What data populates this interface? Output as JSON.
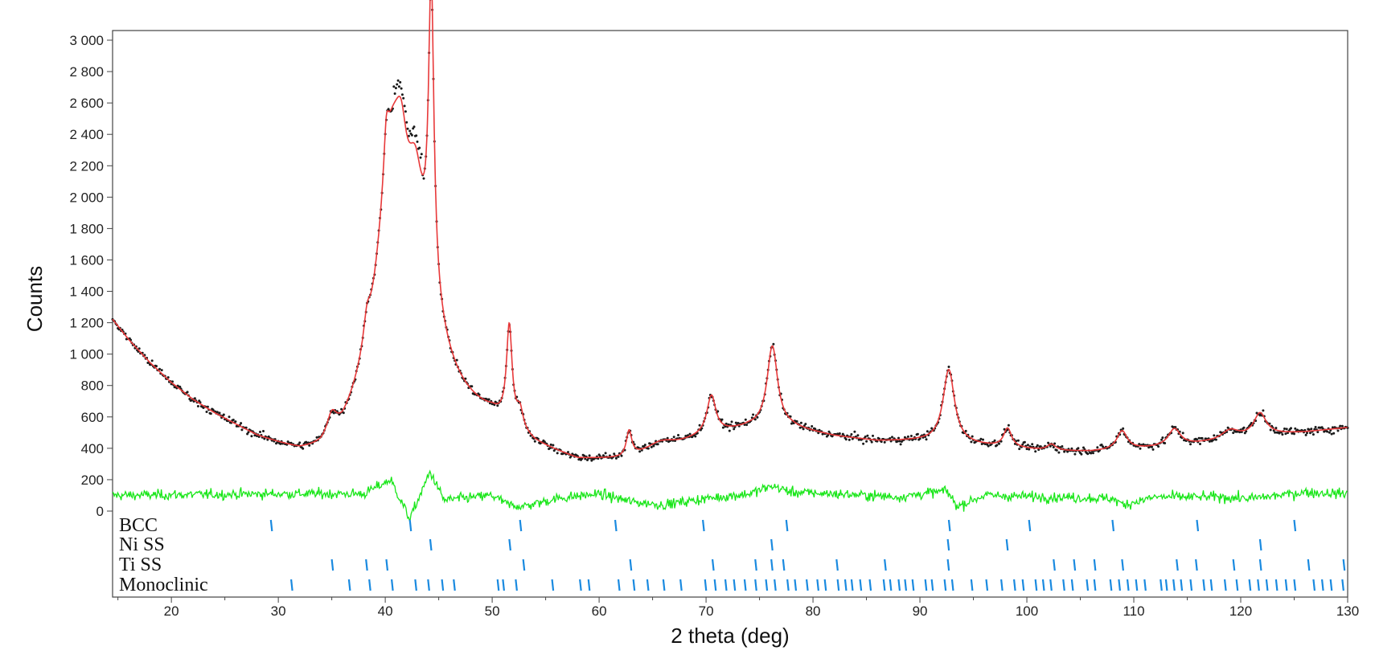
{
  "chart_data": {
    "type": "scatter",
    "title": "",
    "xlabel": "2 theta (deg)",
    "ylabel": "Counts",
    "xlim": [
      14.5,
      130
    ],
    "ylim": [
      -600,
      3080
    ],
    "x_ticks": [
      20,
      30,
      40,
      50,
      60,
      70,
      80,
      90,
      100,
      110,
      120,
      130
    ],
    "x_tick_labels": [
      "20",
      "30",
      "40",
      "50",
      "60",
      "70",
      "80",
      "90",
      "100",
      "110",
      "120",
      "130"
    ],
    "y_ticks": [
      0,
      200,
      400,
      600,
      800,
      1000,
      1200,
      1400,
      1600,
      1800,
      2000,
      2200,
      2400,
      2600,
      2800,
      3000
    ],
    "y_tick_labels": [
      "0",
      "200",
      "400",
      "600",
      "800",
      "1 000",
      "1 200",
      "1 400",
      "1 600",
      "1 800",
      "2 000",
      "2 200",
      "2 400",
      "2 600",
      "2 800",
      "3 000"
    ],
    "grid": false,
    "colors": {
      "observed": "#1a1a1a",
      "calculated": "#e8393a",
      "difference": "#19e619",
      "reflections": "#1a8ae0"
    },
    "series_legend": {
      "observed": "observed points (black dots)",
      "calculated": "calculated profile (red line)",
      "difference": "difference curve (green)"
    },
    "background": {
      "points": [
        [
          14.5,
          1210
        ],
        [
          16,
          1080
        ],
        [
          18,
          930
        ],
        [
          20,
          800
        ],
        [
          22,
          690
        ],
        [
          24,
          600
        ],
        [
          26,
          520
        ],
        [
          28,
          440
        ],
        [
          30,
          380
        ],
        [
          32,
          320
        ],
        [
          34,
          300
        ],
        [
          36,
          350
        ],
        [
          38,
          500
        ],
        [
          50,
          520
        ],
        [
          54,
          380
        ],
        [
          58,
          300
        ],
        [
          62,
          310
        ],
        [
          66,
          370
        ],
        [
          70,
          470
        ],
        [
          74,
          520
        ],
        [
          78,
          520
        ],
        [
          82,
          470
        ],
        [
          86,
          440
        ],
        [
          90,
          440
        ],
        [
          94,
          420
        ],
        [
          98,
          400
        ],
        [
          102,
          380
        ],
        [
          106,
          375
        ],
        [
          110,
          390
        ],
        [
          114,
          410
        ],
        [
          118,
          440
        ],
        [
          122,
          480
        ],
        [
          126,
          500
        ],
        [
          130,
          530
        ]
      ]
    },
    "peaks": [
      {
        "x": 35.0,
        "height": 130,
        "width": 0.55
      },
      {
        "x": 38.3,
        "height": 150,
        "width": 0.35
      },
      {
        "x": 40.1,
        "height": 280,
        "width": 0.28
      },
      {
        "x": 41.5,
        "height": 320,
        "width": 0.6
      },
      {
        "x": 42.8,
        "height": 360,
        "width": 0.75
      },
      {
        "x": 44.3,
        "height": 1900,
        "width": 0.3
      },
      {
        "x": 40.6,
        "height": 1450,
        "width": 1.6
      },
      {
        "x": 43.2,
        "height": 850,
        "width": 2.4
      },
      {
        "x": 51.6,
        "height": 620,
        "width": 0.32
      },
      {
        "x": 52.6,
        "height": 120,
        "width": 0.35
      },
      {
        "x": 62.8,
        "height": 160,
        "width": 0.3
      },
      {
        "x": 65.8,
        "height": 60,
        "width": 1.5
      },
      {
        "x": 70.5,
        "height": 240,
        "width": 0.5
      },
      {
        "x": 76.2,
        "height": 520,
        "width": 0.6
      },
      {
        "x": 92.7,
        "height": 470,
        "width": 0.65
      },
      {
        "x": 98.2,
        "height": 120,
        "width": 0.45
      },
      {
        "x": 102.3,
        "height": 40,
        "width": 0.5
      },
      {
        "x": 108.9,
        "height": 120,
        "width": 0.6
      },
      {
        "x": 113.8,
        "height": 110,
        "width": 0.7
      },
      {
        "x": 119.0,
        "height": 60,
        "width": 1.0
      },
      {
        "x": 121.8,
        "height": 140,
        "width": 0.7
      }
    ],
    "difference_curve": {
      "points": [
        [
          14.5,
          100
        ],
        [
          30,
          110
        ],
        [
          38,
          110
        ],
        [
          40.5,
          200
        ],
        [
          42.3,
          -50
        ],
        [
          44.2,
          250
        ],
        [
          45.5,
          70
        ],
        [
          50,
          100
        ],
        [
          51.5,
          40
        ],
        [
          53,
          30
        ],
        [
          56,
          80
        ],
        [
          60,
          110
        ],
        [
          63,
          60
        ],
        [
          66,
          40
        ],
        [
          70,
          80
        ],
        [
          74,
          110
        ],
        [
          76.2,
          160
        ],
        [
          78,
          120
        ],
        [
          82,
          110
        ],
        [
          88,
          90
        ],
        [
          92.5,
          130
        ],
        [
          93.5,
          30
        ],
        [
          96,
          100
        ],
        [
          102,
          90
        ],
        [
          108,
          80
        ],
        [
          109,
          40
        ],
        [
          112,
          90
        ],
        [
          118,
          90
        ],
        [
          121,
          80
        ],
        [
          126,
          120
        ],
        [
          130,
          110
        ]
      ],
      "noise": 45
    },
    "noise_amplitude": 30,
    "reflections": [
      {
        "name": "BCC",
        "positions": [
          29.3,
          42.3,
          52.6,
          61.5,
          69.7,
          77.5,
          92.7,
          100.2,
          108.0,
          115.9,
          125.0
        ]
      },
      {
        "name": "Ni SS",
        "positions": [
          44.2,
          51.6,
          76.1,
          92.6,
          98.1,
          121.8
        ]
      },
      {
        "name": "Ti SS",
        "positions": [
          35.0,
          38.2,
          40.1,
          52.9,
          62.9,
          70.6,
          74.6,
          76.1,
          77.2,
          82.2,
          86.7,
          92.6,
          102.5,
          104.4,
          106.3,
          108.9,
          114.0,
          115.8,
          119.3,
          121.8,
          126.3,
          129.6
        ]
      },
      {
        "name": "Monoclinic",
        "positions": [
          31.2,
          36.6,
          38.5,
          40.6,
          42.8,
          44.0,
          45.3,
          46.4,
          50.5,
          51.0,
          52.2,
          55.6,
          58.2,
          59.0,
          61.8,
          63.2,
          64.5,
          66.0,
          67.6,
          69.9,
          70.8,
          71.8,
          72.6,
          73.6,
          74.6,
          75.6,
          76.4,
          77.6,
          78.3,
          79.4,
          80.4,
          81.1,
          82.3,
          83.0,
          83.6,
          84.4,
          85.3,
          86.6,
          87.2,
          88.0,
          88.6,
          89.3,
          90.5,
          91.1,
          92.3,
          93.0,
          94.8,
          96.2,
          97.6,
          98.8,
          99.6,
          100.8,
          101.5,
          102.2,
          103.4,
          104.2,
          105.6,
          106.3,
          107.8,
          108.6,
          109.4,
          110.2,
          111.0,
          112.5,
          113.0,
          113.7,
          114.4,
          115.3,
          116.5,
          117.2,
          118.5,
          119.6,
          120.8,
          121.6,
          122.4,
          123.3,
          124.2,
          125.0,
          126.8,
          127.6,
          128.4,
          129.5
        ]
      }
    ]
  }
}
